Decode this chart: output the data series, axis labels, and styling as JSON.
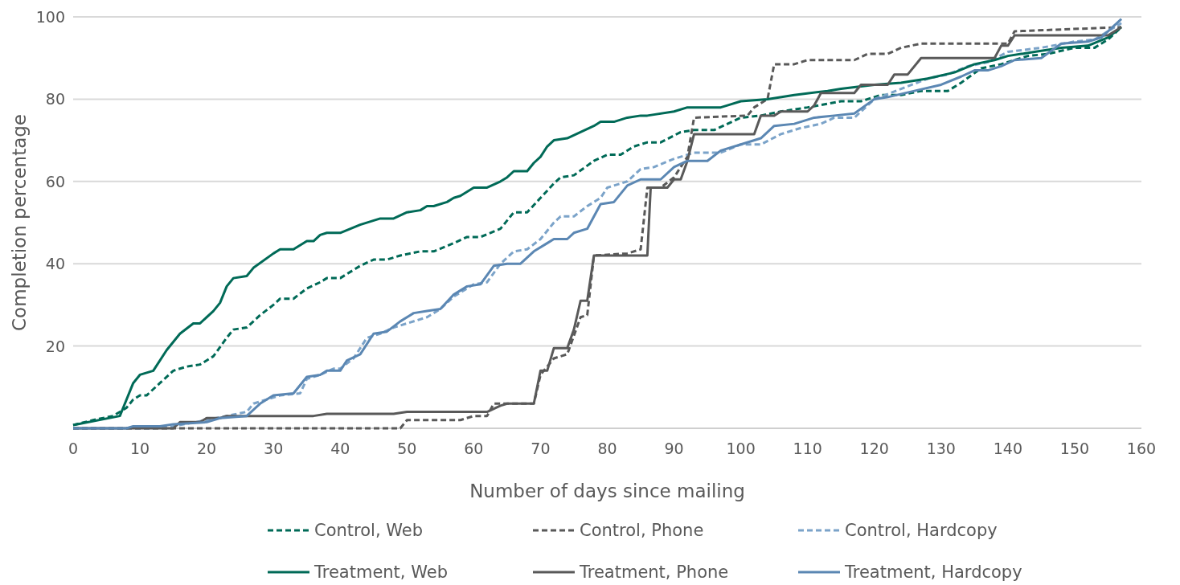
{
  "chart_data": {
    "type": "line",
    "xlabel": "Number of days since mailing",
    "ylabel": "Completion percentage",
    "xlim": [
      0,
      160
    ],
    "xticks": [
      0,
      10,
      20,
      30,
      40,
      50,
      60,
      70,
      80,
      90,
      100,
      110,
      120,
      130,
      140,
      150,
      160
    ],
    "ylim": [
      0,
      100
    ],
    "yticks": [
      {
        "value": 0,
        "label": null
      },
      20,
      40,
      60,
      80,
      100
    ],
    "grid": "y",
    "legend": "bottom",
    "marker": "none",
    "series": [
      {
        "name": "Control, Web",
        "color": "#006a57",
        "line_style": "dashed",
        "x": [
          0,
          3,
          6,
          8,
          9,
          10,
          11,
          13,
          15,
          17,
          19,
          21,
          23,
          24,
          26,
          28,
          30,
          31,
          33,
          35,
          37,
          38,
          40,
          43,
          45,
          47,
          49,
          52,
          54,
          57,
          59,
          61,
          64,
          66,
          68,
          70,
          72,
          73,
          75,
          78,
          80,
          82,
          84,
          86,
          88,
          91,
          93,
          96,
          98,
          100,
          103,
          106,
          110,
          115,
          118,
          121,
          124,
          127,
          131,
          133,
          136,
          139,
          143,
          146,
          150,
          153,
          155,
          157
        ],
        "values": [
          0.8,
          2,
          3,
          5,
          7,
          8,
          8,
          11,
          14,
          15,
          15.5,
          17.5,
          22,
          24,
          24.5,
          27.5,
          30,
          31.5,
          31.5,
          34,
          35.5,
          36.5,
          36.5,
          39.5,
          41,
          41,
          42,
          43,
          43,
          45,
          46.5,
          46.5,
          48.5,
          52.5,
          52.5,
          56,
          59.5,
          61,
          61.5,
          65,
          66.5,
          66.5,
          68.5,
          69.5,
          69.5,
          72,
          72.5,
          72.5,
          74,
          75.5,
          76,
          77,
          78,
          79.5,
          79.5,
          81,
          81,
          82,
          82,
          84,
          87.5,
          88.5,
          90.5,
          91,
          92.5,
          92.5,
          94.5,
          97.5
        ]
      },
      {
        "name": "Control, Phone",
        "color": "#595959",
        "line_style": "dashed",
        "x": [
          0,
          49,
          50,
          58,
          60,
          62,
          63,
          69,
          70,
          72,
          74,
          76,
          77,
          78,
          83,
          85,
          86,
          88,
          90,
          92,
          93,
          101,
          102,
          104,
          105,
          108,
          110,
          117,
          119,
          122,
          124,
          127,
          140,
          141,
          157
        ],
        "values": [
          0,
          0,
          2,
          2,
          3,
          3,
          6,
          6,
          13,
          17,
          18,
          27,
          27.5,
          42,
          42.5,
          43.5,
          58.5,
          58.5,
          61,
          66,
          75.5,
          76,
          78,
          80,
          88.5,
          88.5,
          89.5,
          89.5,
          91,
          91,
          92.5,
          93.5,
          93.5,
          96.5,
          97.5
        ]
      },
      {
        "name": "Control, Hardcopy",
        "color": "#7ba3c9",
        "line_style": "dashed",
        "x": [
          0,
          12,
          15,
          20,
          23,
          26,
          27,
          29,
          31,
          34,
          35,
          37,
          39,
          40,
          42,
          44,
          46,
          48,
          50,
          53,
          55,
          57,
          60,
          62,
          64,
          66,
          68,
          70,
          72,
          73,
          75,
          77,
          79,
          80,
          83,
          85,
          87,
          90,
          93,
          97,
          100,
          103,
          106,
          109,
          112,
          114,
          117,
          120,
          124,
          128,
          131,
          134,
          137,
          140,
          145,
          150,
          153,
          157
        ],
        "values": [
          0,
          0,
          0.5,
          2,
          3,
          4,
          6,
          7,
          8,
          8.5,
          12,
          13,
          14.5,
          14.5,
          17,
          22,
          23,
          24.5,
          25.5,
          27,
          29,
          32,
          35,
          35.5,
          40,
          43,
          43.5,
          46,
          50,
          51.5,
          51.5,
          54,
          56,
          58.5,
          60,
          63,
          63.5,
          65.5,
          67,
          67,
          69,
          69,
          71.5,
          73,
          74,
          75.5,
          75.5,
          80,
          82.5,
          85,
          86,
          88,
          89,
          91.5,
          92.5,
          94,
          94.5,
          98.5
        ]
      },
      {
        "name": "Treatment, Web",
        "color": "#006a57",
        "line_style": "solid",
        "x": [
          0,
          7,
          9,
          10,
          12,
          14,
          16,
          18,
          19,
          21,
          22,
          23,
          24,
          26,
          27,
          30,
          31,
          33,
          35,
          36,
          37,
          38,
          40,
          43,
          46,
          48,
          50,
          52,
          53,
          54,
          56,
          57,
          58,
          60,
          62,
          64,
          65,
          66,
          68,
          69,
          70,
          71,
          72,
          74,
          76,
          78,
          79,
          81,
          83,
          85,
          86,
          90,
          92,
          97,
          98,
          100,
          104,
          108,
          113,
          115,
          120,
          124,
          128,
          132,
          135,
          138,
          140,
          144,
          148,
          152,
          155,
          157
        ],
        "values": [
          0.8,
          3,
          11,
          13,
          14,
          19,
          23,
          25.5,
          25.5,
          28.5,
          30.5,
          34.5,
          36.5,
          37,
          39,
          42.5,
          43.5,
          43.5,
          45.5,
          45.5,
          47,
          47.5,
          47.5,
          49.5,
          51,
          51,
          52.5,
          53,
          54,
          54,
          55,
          56,
          56.5,
          58.5,
          58.5,
          60,
          61,
          62.5,
          62.5,
          64.5,
          66,
          68.5,
          70,
          70.5,
          72,
          73.5,
          74.5,
          74.5,
          75.5,
          76,
          76,
          77,
          78,
          78,
          78.5,
          79.5,
          80,
          81,
          82,
          82.5,
          83.5,
          84,
          85,
          86.5,
          88.5,
          89.5,
          90.5,
          91.5,
          92.5,
          93,
          95,
          97.5
        ]
      },
      {
        "name": "Treatment, Phone",
        "color": "#595959",
        "line_style": "solid",
        "x": [
          0,
          15,
          16,
          19,
          20,
          22,
          23,
          36,
          38,
          48,
          50,
          62,
          64,
          65,
          69,
          70,
          71,
          72,
          74,
          75,
          76,
          77,
          78,
          86,
          86.5,
          89,
          90,
          91,
          92,
          93,
          102,
          103,
          105,
          106,
          110,
          111,
          112,
          117,
          118,
          122,
          123,
          125,
          127,
          138,
          139,
          140,
          141,
          155,
          157
        ],
        "values": [
          0,
          0,
          1.5,
          1.5,
          2.5,
          2.5,
          3,
          3,
          3.5,
          3.5,
          4,
          4,
          5.5,
          6,
          6,
          14,
          14,
          19.5,
          19.5,
          24,
          31,
          31,
          42,
          42,
          58.5,
          58.5,
          60.5,
          60.5,
          65,
          71.5,
          71.5,
          76,
          76,
          77,
          77,
          78.5,
          81.5,
          81.5,
          83.5,
          83.5,
          86,
          86,
          90,
          90,
          93,
          93,
          95.5,
          95.5,
          97.5
        ]
      },
      {
        "name": "Treatment, Hardcopy",
        "color": "#5b87b3",
        "line_style": "solid",
        "x": [
          0,
          8,
          9,
          13,
          15,
          20,
          22,
          26,
          28,
          30,
          33,
          35,
          37,
          38,
          40,
          41,
          43,
          45,
          47,
          49,
          51,
          53,
          55,
          57,
          59,
          61,
          63,
          65,
          67,
          69,
          71,
          72,
          74,
          75,
          77,
          79,
          81,
          83,
          85,
          88,
          90,
          92,
          95,
          97,
          100,
          103,
          105,
          108,
          111,
          114,
          117,
          120,
          122,
          126,
          130,
          133,
          135,
          137,
          139,
          141,
          145,
          148,
          152,
          154,
          157
        ],
        "values": [
          0,
          0,
          0.5,
          0.5,
          1,
          1.5,
          2.5,
          3,
          6,
          8,
          8.5,
          12.5,
          13,
          14,
          14,
          16.5,
          18,
          23,
          23.5,
          26,
          28,
          28.5,
          29,
          32.5,
          34.5,
          35,
          39.5,
          40,
          40,
          43,
          45,
          46,
          46,
          47.5,
          48.5,
          54.5,
          55,
          59,
          60.5,
          60.5,
          63.5,
          65,
          65,
          67.5,
          69,
          70.5,
          73.5,
          74,
          75.5,
          76,
          76.5,
          80,
          80.5,
          82,
          83.5,
          85.5,
          87,
          87,
          88,
          89.5,
          90,
          93.5,
          94,
          95,
          99.5
        ]
      }
    ]
  }
}
